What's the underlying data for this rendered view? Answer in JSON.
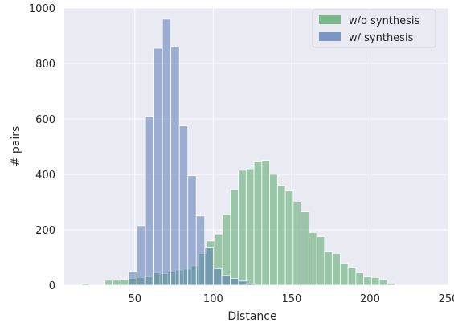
{
  "chart_data": {
    "type": "bar",
    "subtype": "overlaid-histogram",
    "title": "",
    "xlabel": "Distance",
    "ylabel": "# pairs",
    "xlim": [
      5,
      250
    ],
    "ylim": [
      0,
      1000
    ],
    "xticks": [
      50,
      100,
      150,
      200,
      250
    ],
    "yticks": [
      0,
      200,
      400,
      600,
      800,
      1000
    ],
    "grid": true,
    "legend_position": "top-right",
    "series": [
      {
        "name": "w/o synthesis",
        "color": "#55a868",
        "opacity": 0.55,
        "bin_width": 5,
        "bins": [
          [
            16,
            21,
            5
          ],
          [
            31,
            36,
            18
          ],
          [
            36,
            41,
            18
          ],
          [
            41,
            46,
            20
          ],
          [
            46,
            51,
            25
          ],
          [
            51,
            56,
            28
          ],
          [
            56,
            61,
            30
          ],
          [
            61,
            66,
            45
          ],
          [
            66,
            71,
            42
          ],
          [
            71,
            76,
            48
          ],
          [
            76,
            81,
            55
          ],
          [
            81,
            86,
            58
          ],
          [
            86,
            91,
            70
          ],
          [
            91,
            96,
            115
          ],
          [
            96,
            101,
            160
          ],
          [
            101,
            106,
            185
          ],
          [
            106,
            111,
            255
          ],
          [
            111,
            116,
            345
          ],
          [
            116,
            121,
            415
          ],
          [
            121,
            126,
            420
          ],
          [
            126,
            131,
            445
          ],
          [
            131,
            136,
            450
          ],
          [
            136,
            141,
            400
          ],
          [
            141,
            146,
            360
          ],
          [
            146,
            151,
            340
          ],
          [
            151,
            156,
            300
          ],
          [
            156,
            161,
            265
          ],
          [
            161,
            166,
            190
          ],
          [
            166,
            171,
            175
          ],
          [
            171,
            176,
            120
          ],
          [
            176,
            181,
            115
          ],
          [
            181,
            186,
            80
          ],
          [
            186,
            191,
            65
          ],
          [
            191,
            196,
            45
          ],
          [
            196,
            201,
            30
          ],
          [
            201,
            206,
            28
          ],
          [
            206,
            211,
            20
          ],
          [
            211,
            216,
            8
          ]
        ]
      },
      {
        "name": "w/ synthesis",
        "color": "#4c72b0",
        "opacity": 0.5,
        "bin_width": 5.4,
        "bins": [
          [
            46,
            51.4,
            50
          ],
          [
            51.4,
            56.8,
            215
          ],
          [
            56.8,
            62.2,
            610
          ],
          [
            62.2,
            67.6,
            855
          ],
          [
            67.6,
            73,
            960
          ],
          [
            73,
            78.4,
            860
          ],
          [
            78.4,
            83.8,
            575
          ],
          [
            83.8,
            89.2,
            395
          ],
          [
            89.2,
            94.6,
            250
          ],
          [
            94.6,
            100,
            135
          ],
          [
            100,
            105.4,
            60
          ],
          [
            105.4,
            110.8,
            35
          ],
          [
            110.8,
            116.2,
            25
          ],
          [
            116.2,
            121.6,
            15
          ],
          [
            121.6,
            127,
            5
          ]
        ]
      }
    ]
  }
}
